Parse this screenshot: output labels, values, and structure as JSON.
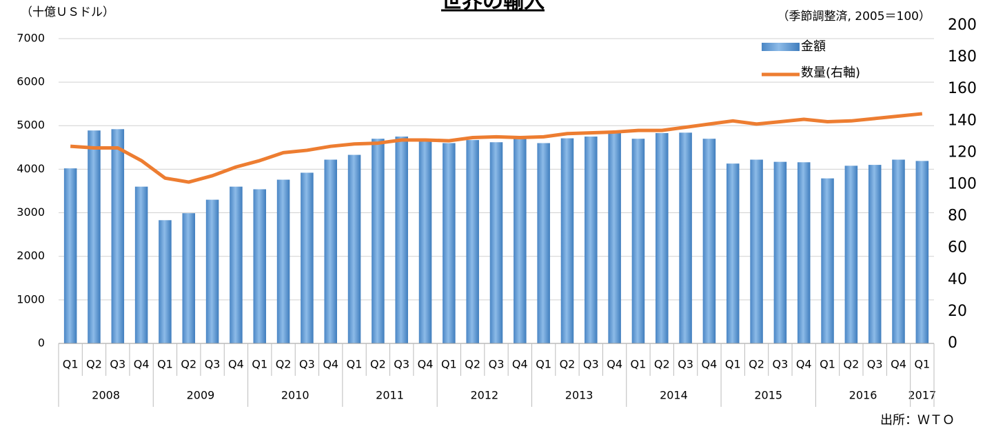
{
  "chart_data": {
    "type": "bar-line",
    "title": "世界の輸入",
    "y_label": "（十億ＵＳドル）",
    "y2_label": "（季節調整済, 2005＝100）",
    "source": "出所：ＷＴＯ",
    "categories": [
      "Q1",
      "Q2",
      "Q3",
      "Q4",
      "Q1",
      "Q2",
      "Q3",
      "Q4",
      "Q1",
      "Q2",
      "Q3",
      "Q4",
      "Q1",
      "Q2",
      "Q3",
      "Q4",
      "Q1",
      "Q2",
      "Q3",
      "Q4",
      "Q1",
      "Q2",
      "Q3",
      "Q4",
      "Q1",
      "Q2",
      "Q3",
      "Q4",
      "Q1",
      "Q2",
      "Q3",
      "Q4",
      "Q1",
      "Q2",
      "Q3",
      "Q4",
      "Q1"
    ],
    "years": [
      "2008",
      "2009",
      "2010",
      "2011",
      "2012",
      "2013",
      "2014",
      "2015",
      "2016",
      "2017"
    ],
    "series": [
      {
        "name": "金額",
        "type": "bar",
        "color": "#5b9bd5",
        "values": [
          4020,
          4890,
          4920,
          3600,
          2830,
          2990,
          3300,
          3600,
          3540,
          3760,
          3920,
          4220,
          4330,
          4700,
          4750,
          4680,
          4600,
          4670,
          4620,
          4710,
          4600,
          4710,
          4750,
          4840,
          4700,
          4830,
          4840,
          4700,
          4130,
          4220,
          4170,
          4160,
          3790,
          4080,
          4100,
          4220,
          4190
        ]
      },
      {
        "name": "数量(右軸)",
        "type": "line",
        "axis": "y2",
        "color": "#ed7d31",
        "values": [
          124,
          123,
          123,
          115,
          104,
          101.5,
          105.5,
          111,
          115,
          120,
          121.5,
          124,
          125.5,
          126,
          128,
          128,
          127.5,
          129.5,
          130,
          129.5,
          130,
          132,
          132.5,
          133,
          134,
          134,
          136,
          138,
          140,
          138,
          139.5,
          141,
          139.5,
          140,
          141.5,
          143,
          144.5
        ]
      }
    ],
    "ylim": [
      0,
      7300
    ],
    "yticks": [
      0,
      1000,
      2000,
      3000,
      4000,
      5000,
      6000,
      7000
    ],
    "y2lim": [
      0,
      200
    ],
    "y2ticks": [
      0,
      20,
      40,
      60,
      80,
      100,
      120,
      140,
      160,
      180,
      200
    ],
    "grid": true
  }
}
